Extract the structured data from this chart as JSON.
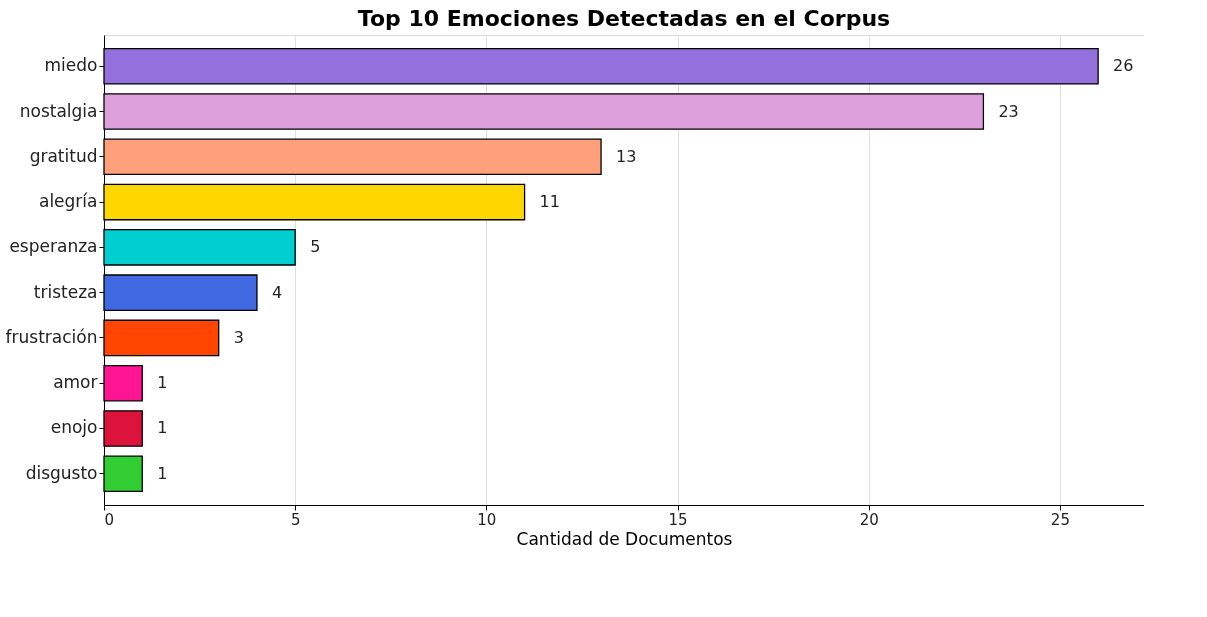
{
  "chart_data": {
    "type": "bar",
    "orientation": "horizontal",
    "title": "Top 10 Emociones Detectadas en el Corpus",
    "xlabel": "Cantidad de Documentos",
    "categories": [
      "miedo",
      "nostalgia",
      "gratitud",
      "alegría",
      "esperanza",
      "tristeza",
      "frustración",
      "amor",
      "enojo",
      "disgusto"
    ],
    "values": [
      26,
      23,
      13,
      11,
      5,
      4,
      3,
      1,
      1,
      1
    ],
    "colors": [
      "#9370db",
      "#dda0dd",
      "#ffa07a",
      "#ffd700",
      "#00ced1",
      "#4169e1",
      "#ff4500",
      "#ff1493",
      "#dc143c",
      "#32cd32"
    ],
    "xlim": [
      0,
      27.2
    ],
    "xticks": [
      0,
      5,
      10,
      15,
      20,
      25
    ],
    "grid": "x",
    "data_labels": true
  }
}
